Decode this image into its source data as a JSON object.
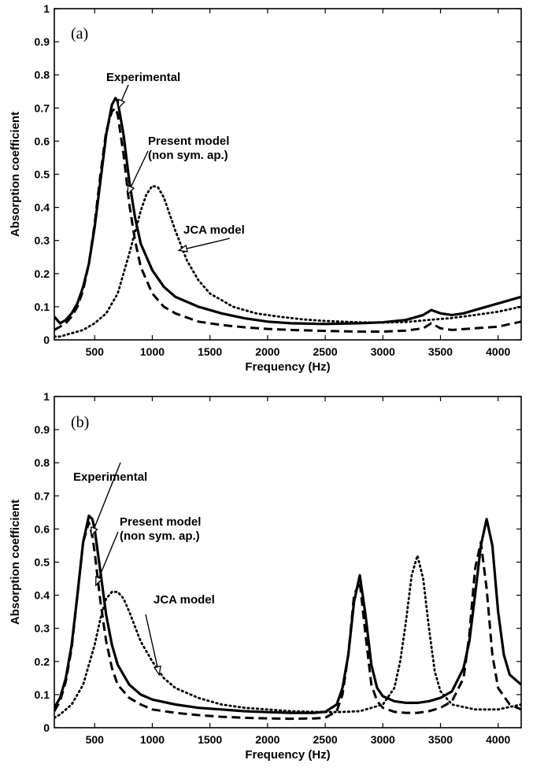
{
  "chart_data": [
    {
      "type": "line",
      "panel_label": "(a)",
      "xlabel": "Frequency (Hz)",
      "ylabel": "Absorption coefficient",
      "xlim": [
        150,
        4200
      ],
      "ylim": [
        0,
        1
      ],
      "xticks": [
        500,
        1000,
        1500,
        2000,
        2500,
        3000,
        3500,
        4000
      ],
      "yticks": [
        "0",
        "0.1",
        "0.2",
        "0.3",
        "0.4",
        "0.5",
        "0.6",
        "0.7",
        "0.8",
        "0.9",
        "1"
      ],
      "grid": false,
      "series": [
        {
          "name": "Experimental",
          "style": "solid",
          "x": [
            150,
            200,
            250,
            300,
            350,
            400,
            450,
            500,
            550,
            600,
            650,
            680,
            700,
            750,
            800,
            850,
            900,
            1000,
            1100,
            1200,
            1400,
            1600,
            1800,
            2000,
            2200,
            2500,
            2800,
            3000,
            3200,
            3350,
            3420,
            3500,
            3600,
            3700,
            3800,
            4000,
            4200
          ],
          "y": [
            0.07,
            0.05,
            0.06,
            0.08,
            0.11,
            0.16,
            0.23,
            0.34,
            0.48,
            0.62,
            0.71,
            0.73,
            0.72,
            0.62,
            0.48,
            0.37,
            0.29,
            0.21,
            0.16,
            0.13,
            0.1,
            0.08,
            0.065,
            0.055,
            0.05,
            0.048,
            0.05,
            0.053,
            0.06,
            0.075,
            0.09,
            0.08,
            0.075,
            0.08,
            0.09,
            0.11,
            0.13
          ]
        },
        {
          "name": "Present model (non sym. ap.)",
          "style": "dashed",
          "x": [
            150,
            200,
            250,
            300,
            350,
            400,
            450,
            500,
            550,
            600,
            650,
            680,
            700,
            750,
            800,
            850,
            900,
            1000,
            1100,
            1200,
            1400,
            1600,
            1800,
            2000,
            2200,
            2500,
            2800,
            3000,
            3200,
            3350,
            3420,
            3500,
            3600,
            3800,
            4000,
            4200
          ],
          "y": [
            0.03,
            0.04,
            0.05,
            0.07,
            0.1,
            0.15,
            0.23,
            0.35,
            0.5,
            0.63,
            0.69,
            0.7,
            0.68,
            0.56,
            0.41,
            0.3,
            0.22,
            0.14,
            0.1,
            0.08,
            0.055,
            0.045,
            0.038,
            0.033,
            0.03,
            0.027,
            0.025,
            0.025,
            0.028,
            0.035,
            0.05,
            0.035,
            0.03,
            0.035,
            0.04,
            0.055
          ]
        },
        {
          "name": "JCA model",
          "style": "dotted",
          "x": [
            150,
            200,
            300,
            400,
            500,
            600,
            700,
            800,
            900,
            950,
            1000,
            1050,
            1100,
            1200,
            1300,
            1400,
            1500,
            1700,
            1900,
            2100,
            2300,
            2500,
            2800,
            3000,
            3200,
            3400,
            3600,
            3800,
            4000,
            4200
          ],
          "y": [
            0.01,
            0.01,
            0.02,
            0.03,
            0.05,
            0.08,
            0.14,
            0.26,
            0.39,
            0.44,
            0.465,
            0.46,
            0.43,
            0.33,
            0.24,
            0.18,
            0.14,
            0.1,
            0.08,
            0.07,
            0.062,
            0.057,
            0.053,
            0.052,
            0.054,
            0.06,
            0.066,
            0.075,
            0.085,
            0.1
          ]
        }
      ],
      "annotations": [
        {
          "lines": [
            "Experimental"
          ],
          "arrow_to": [
            705,
            0.7
          ]
        },
        {
          "lines": [
            "Present model",
            "(non sym. ap.)"
          ],
          "arrow_to": [
            785,
            0.44
          ]
        },
        {
          "lines": [
            "JCA model"
          ],
          "arrow_to": [
            1230,
            0.27
          ]
        }
      ]
    },
    {
      "type": "line",
      "panel_label": "(b)",
      "xlabel": "Frequency (Hz)",
      "ylabel": "Absorption coefficient",
      "xlim": [
        150,
        4200
      ],
      "ylim": [
        0,
        1
      ],
      "xticks": [
        500,
        1000,
        1500,
        2000,
        2500,
        3000,
        3500,
        4000
      ],
      "yticks": [
        "0",
        "0.1",
        "0.2",
        "0.3",
        "0.4",
        "0.5",
        "0.6",
        "0.7",
        "0.8",
        "0.9",
        "1"
      ],
      "grid": false,
      "series": [
        {
          "name": "Experimental",
          "style": "solid",
          "x": [
            150,
            200,
            250,
            300,
            350,
            400,
            450,
            480,
            500,
            550,
            600,
            650,
            700,
            800,
            900,
            1000,
            1200,
            1400,
            1600,
            1800,
            2000,
            2200,
            2400,
            2500,
            2600,
            2650,
            2700,
            2750,
            2800,
            2850,
            2900,
            2950,
            3000,
            3100,
            3200,
            3300,
            3400,
            3500,
            3600,
            3700,
            3750,
            3800,
            3850,
            3900,
            3950,
            4000,
            4050,
            4100,
            4200
          ],
          "y": [
            0.06,
            0.09,
            0.15,
            0.25,
            0.4,
            0.56,
            0.64,
            0.63,
            0.6,
            0.47,
            0.34,
            0.25,
            0.19,
            0.13,
            0.1,
            0.085,
            0.07,
            0.06,
            0.055,
            0.05,
            0.047,
            0.045,
            0.045,
            0.048,
            0.07,
            0.12,
            0.22,
            0.38,
            0.46,
            0.34,
            0.19,
            0.12,
            0.095,
            0.08,
            0.075,
            0.075,
            0.08,
            0.09,
            0.11,
            0.18,
            0.26,
            0.4,
            0.55,
            0.63,
            0.55,
            0.35,
            0.22,
            0.16,
            0.13
          ]
        },
        {
          "name": "Present model (non sym. ap.)",
          "style": "dashed",
          "x": [
            150,
            200,
            250,
            300,
            350,
            400,
            450,
            480,
            500,
            550,
            600,
            650,
            700,
            800,
            900,
            1000,
            1200,
            1400,
            1600,
            1800,
            2000,
            2200,
            2400,
            2500,
            2600,
            2650,
            2700,
            2750,
            2800,
            2850,
            2900,
            2950,
            3000,
            3100,
            3200,
            3300,
            3400,
            3500,
            3600,
            3700,
            3750,
            3800,
            3850,
            3900,
            3950,
            4000,
            4100,
            4200
          ],
          "y": [
            0.05,
            0.08,
            0.14,
            0.24,
            0.4,
            0.56,
            0.62,
            0.58,
            0.53,
            0.38,
            0.26,
            0.18,
            0.13,
            0.09,
            0.07,
            0.055,
            0.045,
            0.038,
            0.033,
            0.03,
            0.028,
            0.027,
            0.028,
            0.03,
            0.05,
            0.1,
            0.22,
            0.4,
            0.44,
            0.28,
            0.13,
            0.08,
            0.06,
            0.048,
            0.045,
            0.045,
            0.05,
            0.06,
            0.08,
            0.15,
            0.28,
            0.48,
            0.56,
            0.42,
            0.22,
            0.12,
            0.07,
            0.055
          ]
        },
        {
          "name": "JCA model",
          "style": "dotted",
          "x": [
            150,
            200,
            300,
            400,
            500,
            550,
            600,
            650,
            700,
            750,
            800,
            900,
            1000,
            1100,
            1200,
            1400,
            1600,
            1800,
            2000,
            2200,
            2400,
            2600,
            2800,
            3000,
            3100,
            3150,
            3200,
            3250,
            3300,
            3350,
            3400,
            3450,
            3500,
            3600,
            3800,
            4000,
            4200
          ],
          "y": [
            0.03,
            0.04,
            0.07,
            0.13,
            0.25,
            0.33,
            0.39,
            0.41,
            0.41,
            0.39,
            0.35,
            0.26,
            0.2,
            0.15,
            0.12,
            0.09,
            0.07,
            0.06,
            0.055,
            0.05,
            0.048,
            0.047,
            0.05,
            0.07,
            0.12,
            0.2,
            0.32,
            0.46,
            0.52,
            0.45,
            0.3,
            0.17,
            0.11,
            0.07,
            0.055,
            0.055,
            0.07
          ]
        }
      ],
      "annotations": [
        {
          "lines": [
            "Experimental"
          ],
          "arrow_to": [
            470,
            0.58
          ]
        },
        {
          "lines": [
            "Present model",
            "(non sym. ap.)"
          ],
          "arrow_to": [
            510,
            0.43
          ]
        },
        {
          "lines": [
            "JCA model"
          ],
          "arrow_to": [
            1060,
            0.16
          ]
        }
      ]
    }
  ]
}
